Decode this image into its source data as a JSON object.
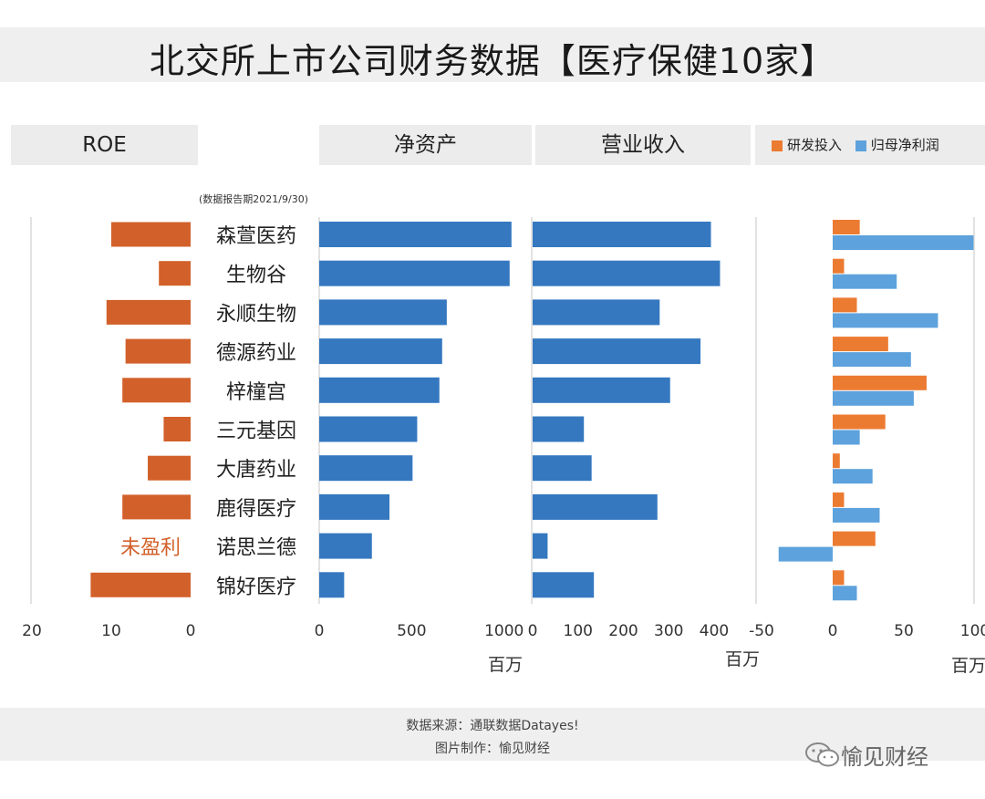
{
  "title": "北交所上市公司财务数据【医疗保健10家】",
  "headers": {
    "roe": "ROE",
    "net_assets": "净资产",
    "revenue": "营业收入"
  },
  "legend": {
    "rd": "研发投入",
    "profit": "归母净利润"
  },
  "note": "(数据报告期2021/9/30)",
  "unit_label": "百万",
  "unprofitable_label": "未盈利",
  "colors": {
    "roe": "#d2602a",
    "blue": "#3578c0",
    "profit": "#5da2dc",
    "rd": "#ec7b32",
    "unprofitable_text": "#d2602a"
  },
  "chart_data": {
    "type": "bar",
    "categories": [
      "森萱医药",
      "生物谷",
      "永顺生物",
      "德源药业",
      "梓橦宫",
      "三元基因",
      "大唐药业",
      "鹿得医疗",
      "诺思兰德",
      "锦好医疗"
    ],
    "panels": [
      {
        "name": "ROE",
        "orientation": "horizontal-reversed",
        "xlim": [
          0,
          20
        ],
        "ticks": [
          20,
          10,
          0
        ],
        "tick_labels": [
          "20",
          "10",
          "0"
        ],
        "series": [
          {
            "name": "ROE",
            "values": [
              10,
              4,
              10.6,
              8.2,
              8.6,
              3.4,
              5.4,
              8.6,
              null,
              12.6
            ]
          }
        ]
      },
      {
        "name": "净资产",
        "unit": "百万",
        "xlim": [
          0,
          1000
        ],
        "ticks": [
          0,
          500,
          1000
        ],
        "tick_labels": [
          "0",
          "500",
          "1000"
        ],
        "series": [
          {
            "name": "净资产",
            "values": [
              1040,
              1030,
              690,
              665,
              650,
              530,
              505,
              380,
              285,
              135
            ]
          }
        ]
      },
      {
        "name": "营业收入",
        "unit": "百万",
        "xlim": [
          0,
          430
        ],
        "ticks": [
          0,
          100,
          200,
          300,
          400
        ],
        "tick_labels": [
          "0",
          "100",
          "200",
          "300",
          "400"
        ],
        "series": [
          {
            "name": "营业收入",
            "values": [
              393,
              413,
              280,
              370,
              303,
              113,
              130,
              275,
              33,
              135
            ]
          }
        ]
      },
      {
        "name": "研发投入/归母净利润",
        "unit": "百万",
        "xlim": [
          -50,
          100
        ],
        "ticks": [
          -50,
          0,
          50,
          100
        ],
        "tick_labels": [
          "-50",
          "0",
          "50",
          "100"
        ],
        "series": [
          {
            "name": "研发投入",
            "values": [
              19,
              8,
              17,
              39,
              66,
              37,
              5,
              8,
              30,
              8
            ]
          },
          {
            "name": "归母净利润",
            "values": [
              99,
              45,
              74,
              55,
              57,
              19,
              28,
              33,
              -38,
              17
            ]
          }
        ]
      }
    ]
  },
  "footer": {
    "source": "数据来源：通联数据Datayes!",
    "maker": "图片制作：愉见财经"
  },
  "watermark": "愉见财经"
}
